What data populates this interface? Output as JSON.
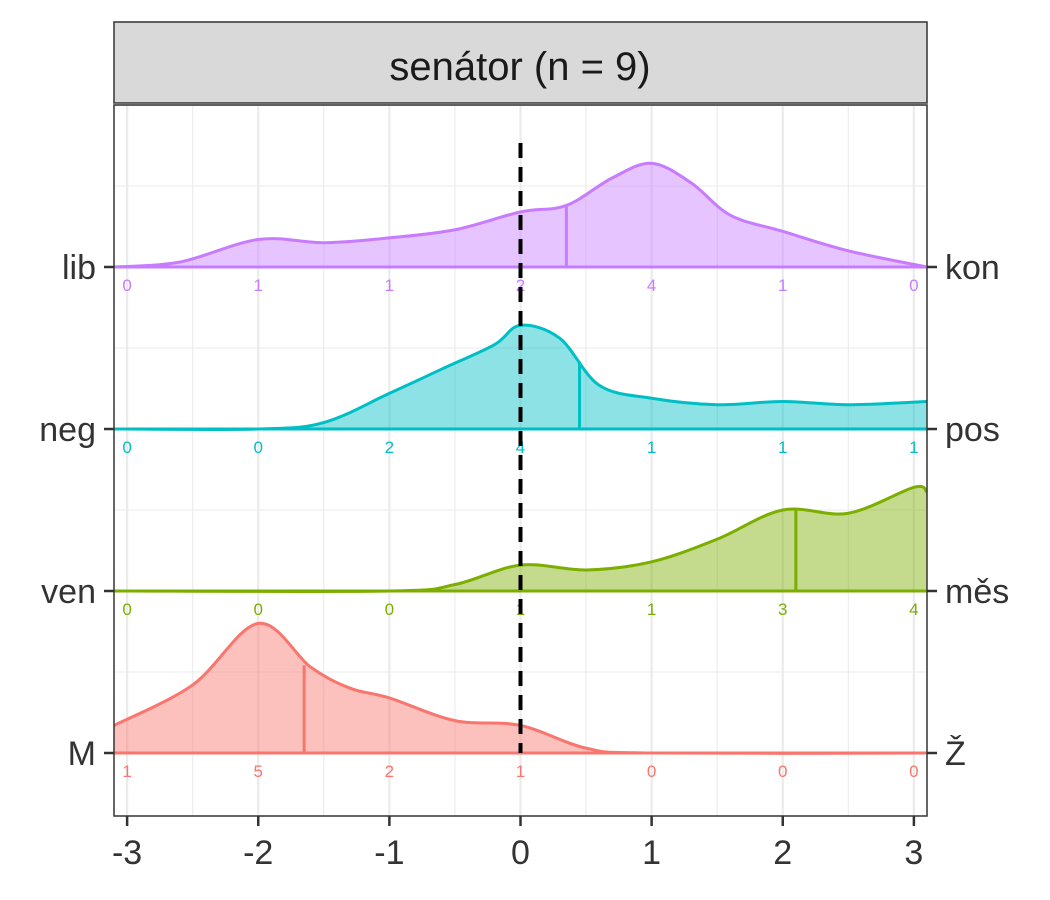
{
  "chart_data": {
    "type": "area",
    "subtype": "ridgeline-density",
    "facet_title": "senátor (n = 9)",
    "xlim": [
      -3.1,
      3.1
    ],
    "x_ticks": [
      -3,
      -2,
      -1,
      0,
      1,
      2,
      3
    ],
    "x_tick_labels": [
      "-3",
      "-2",
      "-1",
      "0",
      "1",
      "2",
      "3"
    ],
    "reference_line_x": 0,
    "count_x_positions": [
      -3,
      -2,
      -1,
      0,
      1,
      2,
      3
    ],
    "grid": true,
    "series": [
      {
        "left_label": "lib",
        "right_label": "kon",
        "color": "#C77CFF",
        "median": 0.35,
        "counts": [
          0,
          1,
          1,
          2,
          4,
          1,
          0
        ],
        "density": [
          [
            -3.1,
            0
          ],
          [
            -2.6,
            0.03
          ],
          [
            -2.0,
            0.17
          ],
          [
            -1.5,
            0.15
          ],
          [
            -1.0,
            0.18
          ],
          [
            -0.5,
            0.23
          ],
          [
            0.0,
            0.34
          ],
          [
            0.35,
            0.38
          ],
          [
            0.7,
            0.55
          ],
          [
            1.0,
            0.64
          ],
          [
            1.3,
            0.52
          ],
          [
            1.6,
            0.32
          ],
          [
            2.0,
            0.22
          ],
          [
            2.5,
            0.1
          ],
          [
            3.1,
            0
          ]
        ]
      },
      {
        "left_label": "neg",
        "right_label": "pos",
        "color": "#00BFC4",
        "median": 0.45,
        "counts": [
          0,
          0,
          2,
          4,
          1,
          1,
          1
        ],
        "density": [
          [
            -3.1,
            0
          ],
          [
            -2.0,
            0
          ],
          [
            -1.5,
            0.04
          ],
          [
            -1.0,
            0.22
          ],
          [
            -0.6,
            0.37
          ],
          [
            -0.2,
            0.52
          ],
          [
            0.0,
            0.64
          ],
          [
            0.3,
            0.56
          ],
          [
            0.6,
            0.27
          ],
          [
            1.0,
            0.19
          ],
          [
            1.5,
            0.15
          ],
          [
            2.0,
            0.17
          ],
          [
            2.5,
            0.15
          ],
          [
            3.1,
            0.17
          ]
        ]
      },
      {
        "left_label": "ven",
        "right_label": "měs",
        "color": "#7CAE00",
        "median": 2.1,
        "counts": [
          0,
          0,
          0,
          1,
          1,
          3,
          4
        ],
        "density": [
          [
            -3.1,
            0
          ],
          [
            -1.0,
            0
          ],
          [
            -0.5,
            0.04
          ],
          [
            0.0,
            0.16
          ],
          [
            0.5,
            0.13
          ],
          [
            1.0,
            0.18
          ],
          [
            1.5,
            0.32
          ],
          [
            2.0,
            0.5
          ],
          [
            2.5,
            0.48
          ],
          [
            3.0,
            0.64
          ],
          [
            3.1,
            0.61
          ]
        ]
      },
      {
        "left_label": "M",
        "right_label": "Ž",
        "color": "#F8766D",
        "median": -1.65,
        "counts": [
          1,
          5,
          2,
          1,
          0,
          0,
          0
        ],
        "density": [
          [
            -3.1,
            0.17
          ],
          [
            -2.5,
            0.42
          ],
          [
            -2.0,
            0.8
          ],
          [
            -1.6,
            0.53
          ],
          [
            -1.3,
            0.4
          ],
          [
            -1.0,
            0.34
          ],
          [
            -0.5,
            0.2
          ],
          [
            0.0,
            0.17
          ],
          [
            0.5,
            0.03
          ],
          [
            1.0,
            0
          ],
          [
            3.1,
            0
          ]
        ]
      }
    ]
  }
}
